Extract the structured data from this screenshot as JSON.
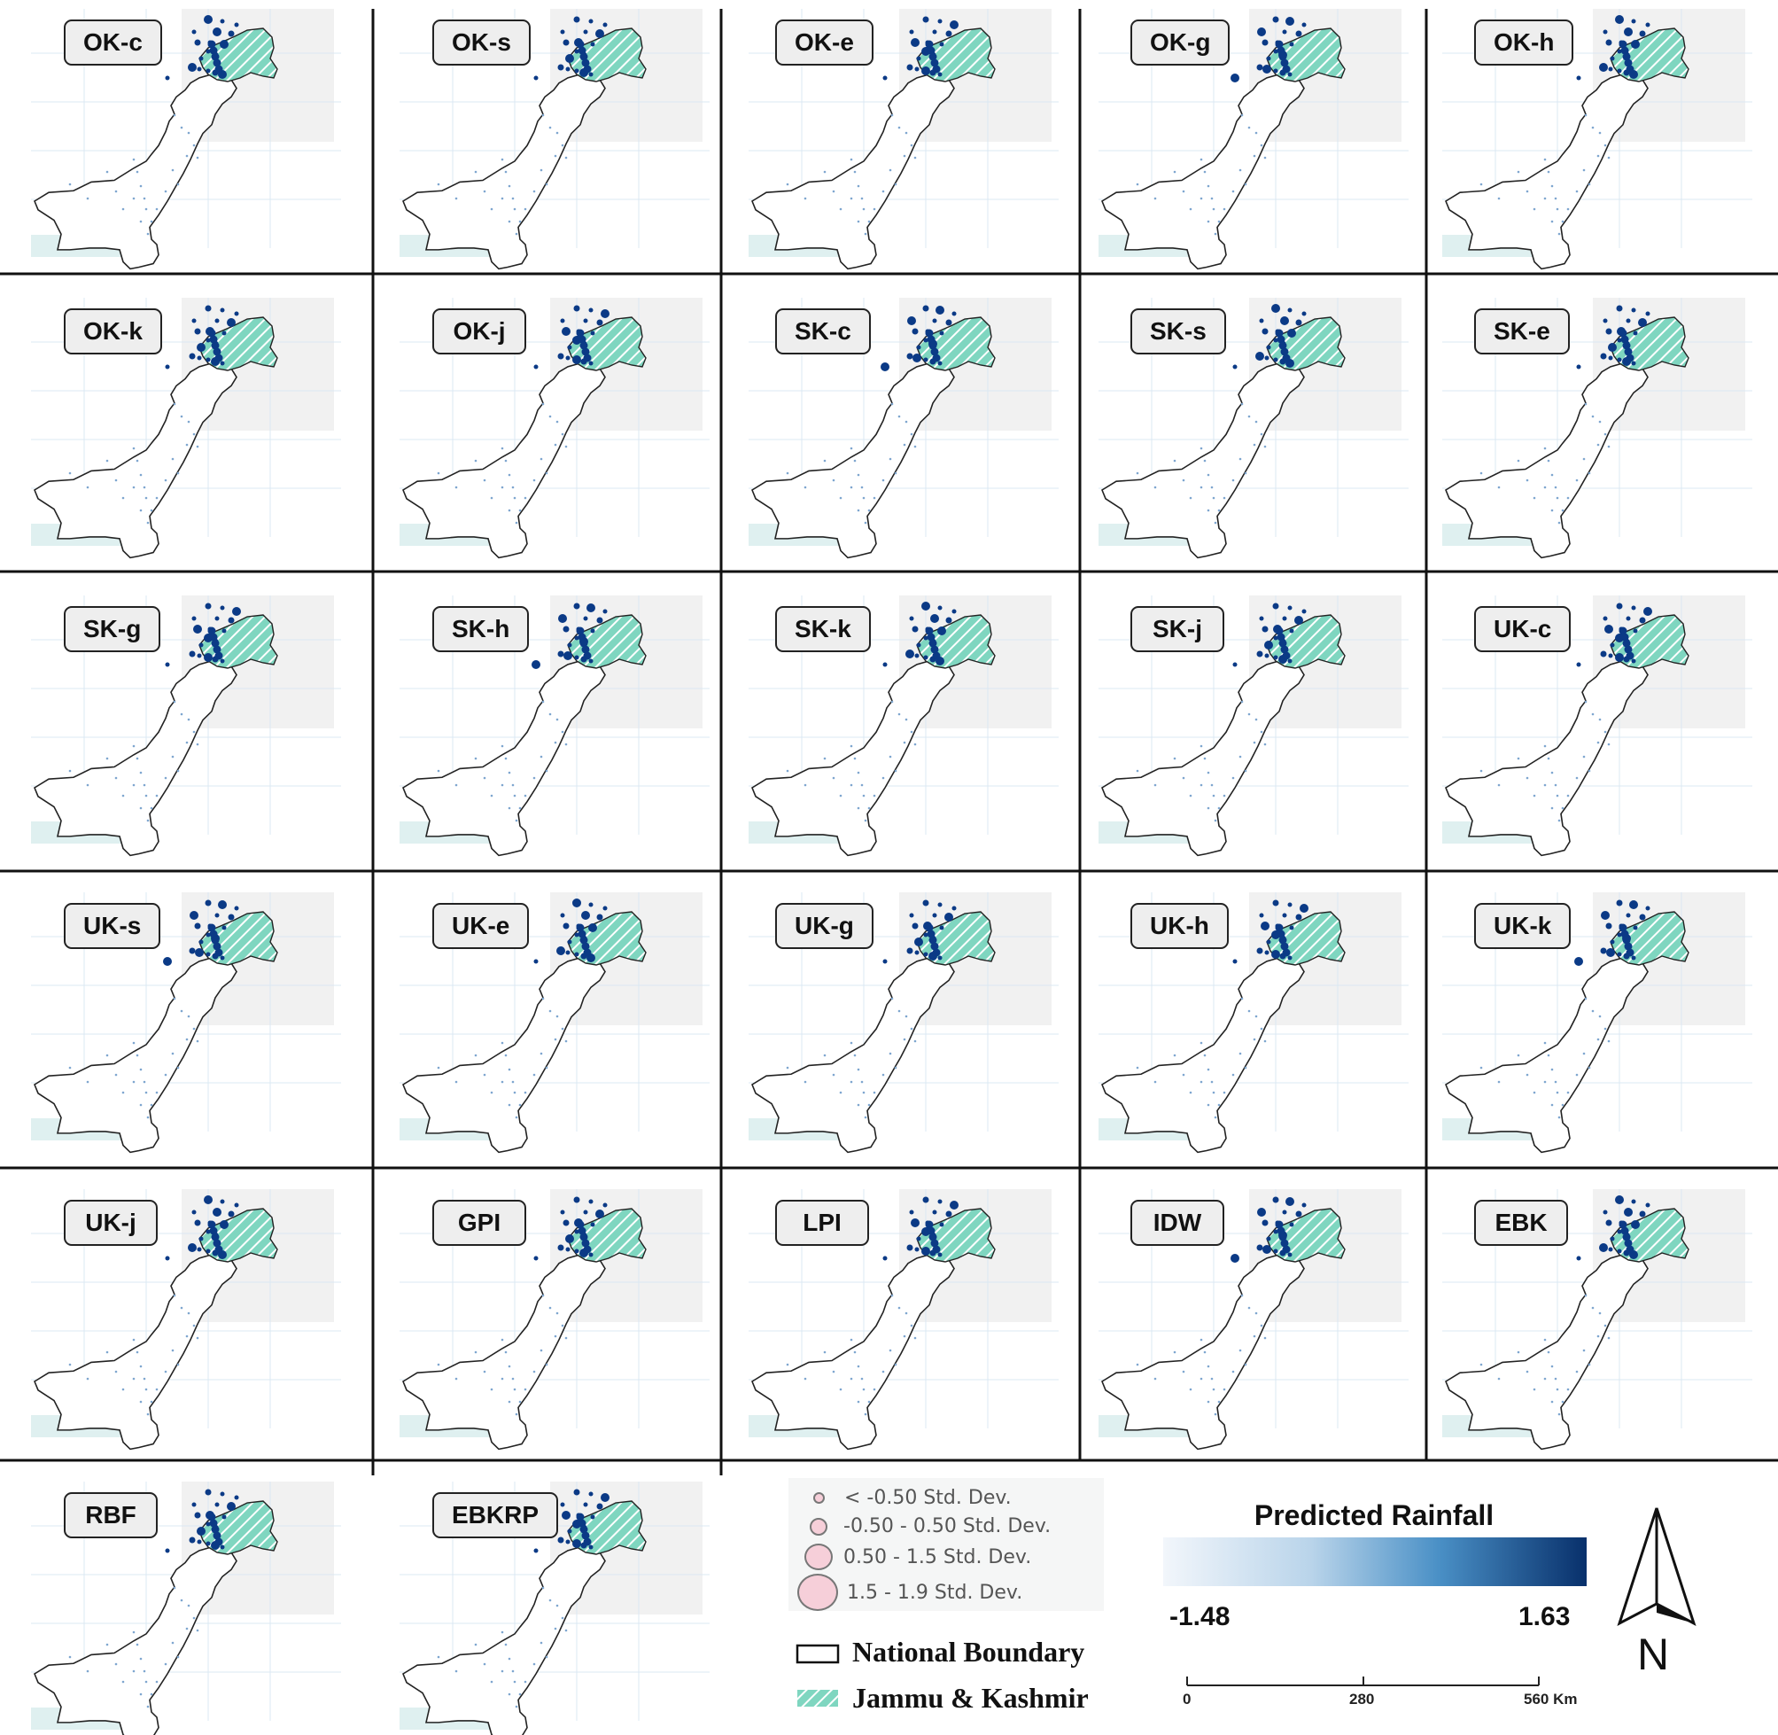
{
  "panels": [
    "OK-c",
    "OK-s",
    "OK-e",
    "OK-g",
    "OK-h",
    "OK-k",
    "OK-j",
    "SK-c",
    "SK-s",
    "SK-e",
    "SK-g",
    "SK-h",
    "SK-k",
    "SK-j",
    "UK-c",
    "UK-s",
    "UK-e",
    "UK-g",
    "UK-h",
    "UK-k",
    "UK-j",
    "GPI",
    "LPI",
    "IDW",
    "EBK",
    "RBF",
    "EBKRP"
  ],
  "legend": {
    "std_dev_classes": [
      "< -0.50 Std. Dev.",
      "-0.50 - 0.50 Std. Dev.",
      "0.50 - 1.5 Std. Dev.",
      "1.5 - 1.9 Std. Dev."
    ],
    "national_boundary": "National Boundary",
    "jammu_kashmir": "Jammu & Kashmir"
  },
  "colorbar": {
    "title": "Predicted Rainfall",
    "min": "-1.48",
    "max": "1.63",
    "colors": [
      "#f2f6fb",
      "#b9d4ea",
      "#4a90c6",
      "#08306b"
    ]
  },
  "scale_bar": {
    "labels": [
      "0",
      "280",
      "560 Km"
    ]
  },
  "north_arrow": {
    "letter": "N"
  },
  "colors": {
    "kashmir_fill": "#7fd6c0",
    "sea": "#dff0f0",
    "point_dark": "#0b3a86",
    "point_light": "#7ea6cf"
  }
}
